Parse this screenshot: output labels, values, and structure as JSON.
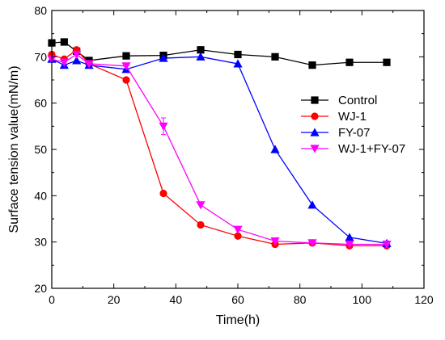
{
  "chart_data": {
    "type": "line",
    "title": "",
    "xlabel": "Time(h)",
    "ylabel": "Surface tension value(mN/m)",
    "xlim": [
      0,
      120
    ],
    "ylim": [
      20,
      80
    ],
    "xticks": [
      0,
      20,
      40,
      60,
      80,
      100,
      120
    ],
    "yticks": [
      20,
      30,
      40,
      50,
      60,
      70,
      80
    ],
    "grid": false,
    "legend_position": "center-right",
    "series": [
      {
        "name": "Control",
        "color": "#000000",
        "marker": "square",
        "x": [
          0,
          4,
          8,
          12,
          24,
          36,
          48,
          60,
          72,
          84,
          96,
          108
        ],
        "y": [
          73,
          73.2,
          71.2,
          69.2,
          70.2,
          70.3,
          71.5,
          70.5,
          70,
          68.2,
          68.8,
          68.8
        ],
        "err": [
          0,
          0,
          0,
          0,
          0,
          0,
          0.6,
          0,
          0,
          0,
          0,
          0
        ]
      },
      {
        "name": "WJ-1",
        "color": "#ff0000",
        "marker": "circle",
        "x": [
          0,
          4,
          8,
          12,
          24,
          36,
          48,
          60,
          72,
          84,
          96,
          108
        ],
        "y": [
          70.5,
          69.5,
          71.5,
          68.5,
          65,
          40.5,
          33.7,
          31.3,
          29.5,
          29.8,
          29.2,
          29.2
        ],
        "err": [
          0,
          0,
          0,
          0,
          0,
          0.5,
          0,
          0,
          0,
          0,
          0,
          0
        ]
      },
      {
        "name": "FY-07",
        "color": "#0000ff",
        "marker": "triangle-up",
        "x": [
          0,
          4,
          8,
          12,
          24,
          36,
          48,
          60,
          72,
          84,
          96,
          108
        ],
        "y": [
          69.5,
          68.2,
          69.2,
          68.2,
          67.3,
          69.7,
          70,
          68.5,
          50,
          38,
          31,
          29.7
        ],
        "err": [
          0,
          0,
          0,
          0,
          0,
          0,
          0,
          0,
          0,
          0,
          0,
          0
        ]
      },
      {
        "name": "WJ-1+FY-07",
        "color": "#ff00ff",
        "marker": "triangle-down",
        "x": [
          0,
          4,
          8,
          12,
          24,
          36,
          48,
          60,
          72,
          84,
          96,
          108
        ],
        "y": [
          69.5,
          68.8,
          70.5,
          68.5,
          68,
          55,
          38,
          32.7,
          30.2,
          29.8,
          29.5,
          29.5
        ],
        "err": [
          0,
          0,
          0,
          0,
          0,
          1.8,
          0,
          0,
          0,
          0,
          0,
          0
        ]
      }
    ]
  }
}
